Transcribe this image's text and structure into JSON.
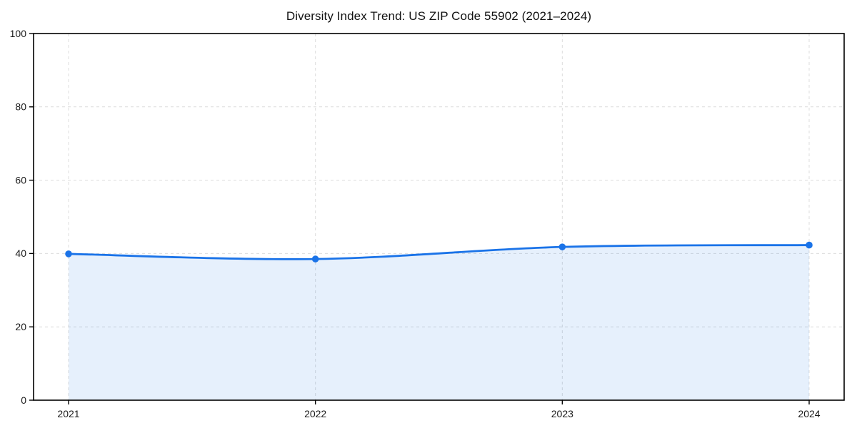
{
  "chart_data": {
    "type": "line",
    "title": "Diversity Index Trend: US ZIP Code 55902 (2021–2024)",
    "categories": [
      "2021",
      "2022",
      "2023",
      "2024"
    ],
    "series": [
      {
        "name": "Diversity Index",
        "values": [
          39.9,
          38.5,
          41.8,
          42.3
        ]
      }
    ],
    "xlabel": "",
    "ylabel": "",
    "ylim": [
      0,
      100
    ],
    "yticks": [
      0,
      20,
      40,
      60,
      80,
      100
    ],
    "grid": {
      "horizontal": true,
      "vertical": true,
      "style": "dashed"
    },
    "legend_position": "none",
    "area_fill_to_zero": true,
    "marker_style": "filled-circle",
    "colors": {
      "line": "#1a73e8",
      "marker": "#1a73e8",
      "fill": "#1a73e8",
      "fill_opacity": "0.11",
      "grid": "#dcdcdc",
      "spine": "#000000",
      "tick_text": "#1a1a1a",
      "title_text": "#111111",
      "background": "#ffffff"
    }
  }
}
